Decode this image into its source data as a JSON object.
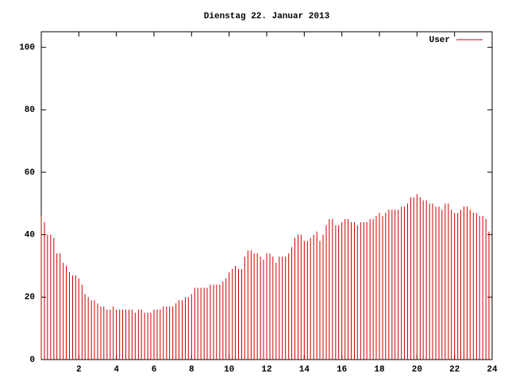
{
  "chart_data": {
    "type": "impulse",
    "title": "Dienstag 22. Januar 2013",
    "x": [
      0,
      0.17,
      0.33,
      0.5,
      0.67,
      0.83,
      1,
      1.17,
      1.33,
      1.5,
      1.67,
      1.83,
      2,
      2.17,
      2.33,
      2.5,
      2.67,
      2.83,
      3,
      3.17,
      3.33,
      3.5,
      3.67,
      3.83,
      4,
      4.17,
      4.33,
      4.5,
      4.67,
      4.83,
      5,
      5.17,
      5.33,
      5.5,
      5.67,
      5.83,
      6,
      6.17,
      6.33,
      6.5,
      6.67,
      6.83,
      7,
      7.17,
      7.33,
      7.5,
      7.67,
      7.83,
      8,
      8.17,
      8.33,
      8.5,
      8.67,
      8.83,
      9,
      9.17,
      9.33,
      9.5,
      9.67,
      9.83,
      10,
      10.17,
      10.33,
      10.5,
      10.67,
      10.83,
      11,
      11.17,
      11.33,
      11.5,
      11.67,
      11.83,
      12,
      12.17,
      12.33,
      12.5,
      12.67,
      12.83,
      13,
      13.17,
      13.33,
      13.5,
      13.67,
      13.83,
      14,
      14.17,
      14.33,
      14.5,
      14.67,
      14.83,
      15,
      15.17,
      15.33,
      15.5,
      15.67,
      15.83,
      16,
      16.17,
      16.33,
      16.5,
      16.67,
      16.83,
      17,
      17.17,
      17.33,
      17.5,
      17.67,
      17.83,
      18,
      18.17,
      18.33,
      18.5,
      18.67,
      18.83,
      19,
      19.17,
      19.33,
      19.5,
      19.67,
      19.83,
      20,
      20.17,
      20.33,
      20.5,
      20.67,
      20.83,
      21,
      21.17,
      21.33,
      21.5,
      21.67,
      21.83,
      22,
      22.17,
      22.33,
      22.5,
      22.67,
      22.83,
      23,
      23.17,
      23.33,
      23.5,
      23.67,
      23.83
    ],
    "series": [
      {
        "name": "User",
        "color": "#cc0000",
        "values": [
          46,
          44,
          40,
          40,
          39,
          34,
          34,
          31,
          30,
          28,
          27,
          27,
          26,
          24,
          21,
          20,
          19,
          19,
          18,
          17,
          17,
          16,
          16,
          17,
          16,
          16,
          16,
          16,
          16,
          16,
          15,
          16,
          16,
          15,
          15,
          15,
          16,
          16,
          16,
          17,
          17,
          17,
          17,
          18,
          19,
          19,
          20,
          20,
          21,
          23,
          23,
          23,
          23,
          23,
          24,
          24,
          24,
          24,
          25,
          26,
          28,
          29,
          30,
          29,
          29,
          33,
          35,
          35,
          34,
          34,
          33,
          32,
          34,
          34,
          33,
          31,
          33,
          33,
          33,
          34,
          36,
          39,
          40,
          40,
          38,
          38,
          39,
          40,
          41,
          38,
          40,
          43,
          45,
          45,
          43,
          43,
          44,
          45,
          45,
          44,
          44,
          43,
          44,
          44,
          44,
          45,
          45,
          46,
          47,
          46,
          47,
          48,
          48,
          48,
          48,
          49,
          49,
          50,
          52,
          52,
          53,
          52,
          51,
          51,
          50,
          50,
          49,
          49,
          48,
          50,
          50,
          48,
          47,
          47,
          48,
          49,
          49,
          48,
          47,
          47,
          46,
          46,
          45,
          41
        ]
      }
    ],
    "xlim": [
      0,
      24
    ],
    "ylim": [
      0,
      105
    ],
    "xticks": [
      2,
      4,
      6,
      8,
      10,
      12,
      14,
      16,
      18,
      20,
      22,
      24
    ],
    "yticks": [
      0,
      20,
      40,
      60,
      80,
      100
    ]
  }
}
